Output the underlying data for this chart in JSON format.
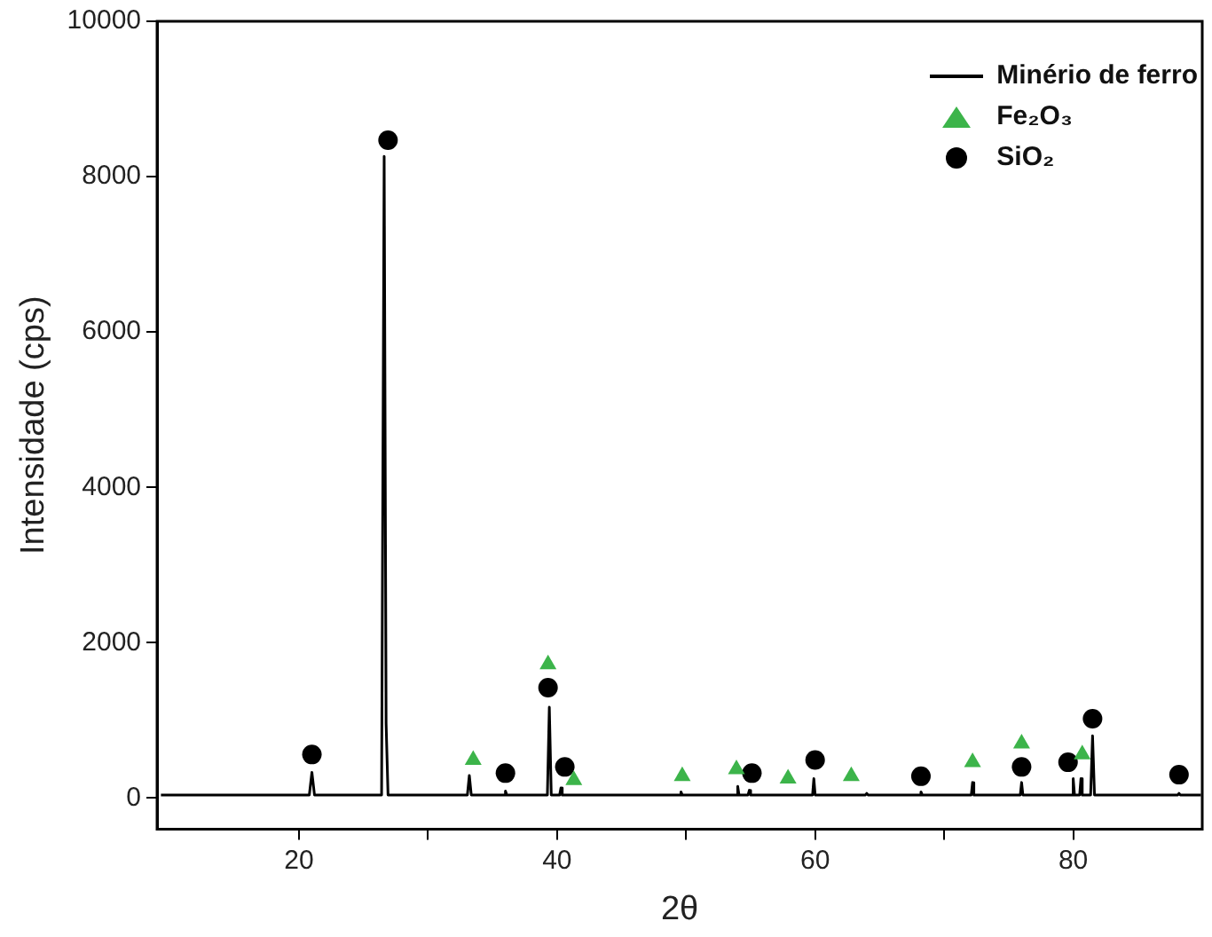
{
  "chart_data": {
    "type": "line",
    "xlabel": "2θ",
    "ylabel": "Intensidade (cps)",
    "xlim": [
      9,
      90
    ],
    "xticks": [
      20,
      {
        "value": 30,
        "label": null
      },
      40,
      {
        "value": 50,
        "label": null
      },
      60,
      {
        "value": 70,
        "label": null
      },
      80
    ],
    "ylim": [
      -400,
      10000
    ],
    "yticks": [
      0,
      2000,
      4000,
      6000,
      8000,
      10000
    ],
    "grid": false,
    "legend": "top right",
    "series": [
      {
        "name": "Minério de ferro",
        "type": "line",
        "color": "#000000",
        "marker": "none",
        "x": [
          9.3,
          15,
          20.8,
          21.0,
          21.2,
          26.4,
          26.6,
          26.75,
          26.9,
          27.05,
          33.05,
          33.2,
          33.35,
          35.9,
          36.0,
          36.1,
          39.25,
          39.4,
          39.55,
          40.2,
          40.3,
          40.4,
          49.5,
          49.6,
          49.7,
          53.9,
          54.0,
          54.1,
          54.8,
          54.9,
          55.0,
          59.8,
          59.9,
          60.0,
          63.9,
          64.0,
          64.1,
          68.1,
          68.2,
          68.3,
          72.1,
          72.2,
          72.3,
          75.9,
          76.0,
          76.1,
          79.9,
          80.0,
          80.1,
          80.5,
          80.6,
          80.7,
          81.35,
          81.5,
          81.65,
          88.1,
          88.2,
          88.3,
          89.9
        ],
        "values": [
          40,
          40,
          40,
          330,
          40,
          40,
          8260,
          960,
          40,
          40,
          40,
          290,
          40,
          40,
          90,
          40,
          40,
          1170,
          40,
          40,
          130,
          40,
          40,
          80,
          40,
          40,
          150,
          40,
          40,
          100,
          40,
          40,
          250,
          40,
          40,
          60,
          40,
          40,
          80,
          40,
          40,
          200,
          40,
          40,
          200,
          40,
          40,
          250,
          40,
          40,
          250,
          40,
          40,
          800,
          40,
          40,
          60,
          40,
          40
        ]
      },
      {
        "name": "Fe₂O₃",
        "type": "scatter",
        "color": "#3cb44a",
        "marker": "triangle",
        "x": [
          33.5,
          39.3,
          41.3,
          49.7,
          53.9,
          57.9,
          62.8,
          72.2,
          76.0,
          80.7
        ],
        "values": [
          490,
          1720,
          230,
          280,
          370,
          250,
          280,
          460,
          700,
          560
        ]
      },
      {
        "name": "SiO₂",
        "type": "scatter",
        "color": "#000000",
        "marker": "circle",
        "x": [
          21.0,
          26.9,
          36.0,
          39.3,
          40.6,
          55.1,
          60.0,
          68.2,
          76.0,
          79.6,
          81.5,
          88.2
        ],
        "values": [
          560,
          8470,
          320,
          1420,
          400,
          320,
          490,
          280,
          400,
          460,
          1020,
          300
        ]
      }
    ]
  }
}
